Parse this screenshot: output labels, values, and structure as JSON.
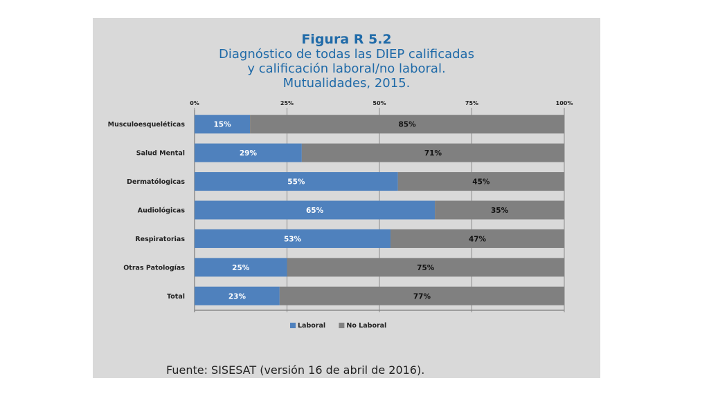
{
  "chart_data": {
    "type": "bar",
    "orientation": "horizontal",
    "stacked": true,
    "title": "Figura R 5.2",
    "subtitle_lines": [
      "Diagnóstico de todas las DIEP calificadas",
      "y calificación laboral/no laboral.",
      "Mutualidades, 2015."
    ],
    "categories": [
      "Musculoesqueléticas",
      "Salud Mental",
      "Dermatólogicas",
      "Audiológicas",
      "Respiratorias",
      "Otras Patologías",
      "Total"
    ],
    "series": [
      {
        "name": "Laboral",
        "color": "#4f81bd",
        "label_color": "#ffffff",
        "values": [
          15,
          29,
          55,
          65,
          53,
          25,
          23
        ],
        "labels": [
          "15%",
          "29%",
          "55%",
          "65%",
          "53%",
          "25%",
          "23%"
        ]
      },
      {
        "name": "No Laboral",
        "color": "#808080",
        "label_color": "#111111",
        "values": [
          85,
          71,
          45,
          35,
          47,
          75,
          77
        ],
        "labels": [
          "85%",
          "71%",
          "45%",
          "35%",
          "47%",
          "75%",
          "77%"
        ]
      }
    ],
    "xlim": [
      0,
      100
    ],
    "x_ticks": [
      0,
      25,
      50,
      75,
      100
    ],
    "x_tick_labels": [
      "0%",
      "25%",
      "50%",
      "75%",
      "100%"
    ],
    "x_axis_position": "top",
    "grid": true,
    "legend_position": "bottom"
  },
  "source": "Fuente: SISESAT (versión 16 de abril de 2016)."
}
